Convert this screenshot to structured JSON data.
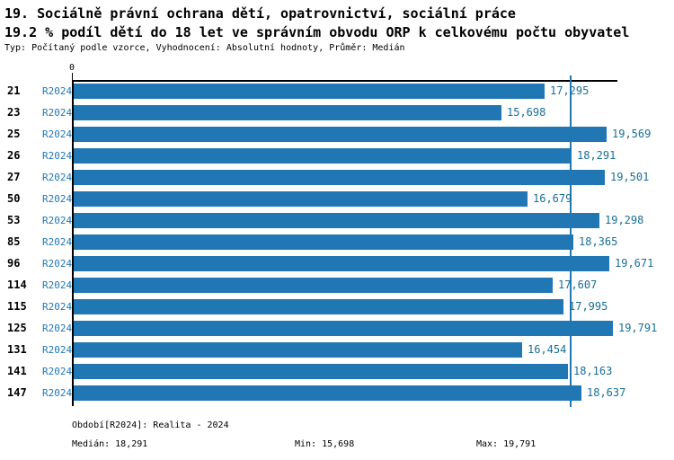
{
  "header": {
    "title_line1": "19. Sociálně právní ochrana dětí, opatrovnictví, sociální práce",
    "title_line2": "19.2 % podíl dětí do 18 let ve správním obvodu ORP k celkovému počtu obyvatel",
    "subtitle": "Typ: Počítaný podle vzorce, Vyhodnocení: Absolutní hodnoty, Průměr: Medián"
  },
  "chart_data": {
    "type": "bar",
    "orientation": "horizontal",
    "title": "19.2 % podíl dětí do 18 let ve správním obvodu ORP k celkovému počtu obyvatel",
    "series_label": "R2024",
    "categories": [
      "21",
      "23",
      "25",
      "26",
      "27",
      "50",
      "53",
      "85",
      "96",
      "114",
      "115",
      "125",
      "131",
      "141",
      "147"
    ],
    "values": [
      17295,
      15698,
      19569,
      18291,
      19501,
      16679,
      19298,
      18365,
      19671,
      17607,
      17995,
      19791,
      16454,
      18163,
      18637
    ],
    "value_labels": [
      "17,295",
      "15,698",
      "19,569",
      "18,291",
      "19,501",
      "16,679",
      "19,298",
      "18,365",
      "19,671",
      "17,607",
      "17,995",
      "19,791",
      "16,454",
      "18,163",
      "18,637"
    ],
    "xlabel": "",
    "ylabel": "",
    "xlim": [
      0,
      20000
    ],
    "x_tick_labels": [
      "0"
    ],
    "grid": false,
    "legend": "none",
    "median_value": 18291,
    "min_value": 15698,
    "max_value": 19791,
    "bar_color": "#2077B4",
    "median_line_color": "#2077B4",
    "series_label_color": "#2077B4",
    "value_label_color": "#186E96"
  },
  "footer": {
    "period": "Období[R2024]: Realita - 2024",
    "median": "Medián: 18,291",
    "min": "Min: 15,698",
    "max": "Max: 19,791"
  }
}
